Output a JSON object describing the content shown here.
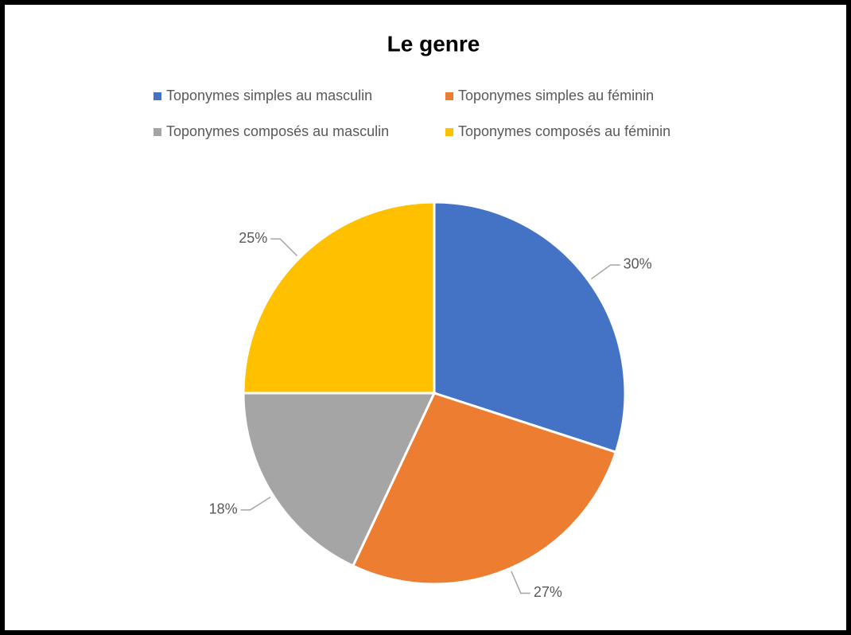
{
  "chart_data": {
    "type": "pie",
    "title": "Le genre",
    "categories": [
      "Toponymes simples au masculin",
      "Toponymes simples au féminin",
      "Toponymes composés au masculin",
      "Toponymes composés au féminin"
    ],
    "values": [
      30,
      27,
      18,
      25
    ],
    "value_labels": [
      "30%",
      "27%",
      "18%",
      "25%"
    ],
    "colors": [
      "#4472c4",
      "#ed7d31",
      "#a5a5a5",
      "#ffc000"
    ],
    "legend": "top"
  }
}
